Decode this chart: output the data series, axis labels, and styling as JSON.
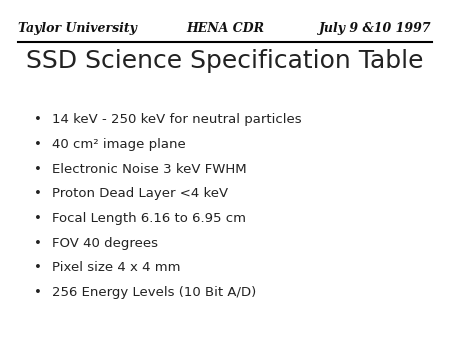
{
  "background_color": "#ffffff",
  "header_left": "Taylor University",
  "header_center": "HENA CDR",
  "header_right": "July 9 &10 1997",
  "header_fontsize": 9,
  "title": "SSD Science Specification Table",
  "title_fontsize": 18,
  "title_color": "#222222",
  "bullet_items": [
    "14 keV - 250 keV for neutral particles",
    "40 cm² image plane",
    "Electronic Noise 3 keV FWHM",
    "Proton Dead Layer <4 keV",
    "Focal Length 6.16 to 6.95 cm",
    "FOV 40 degrees",
    "Pixel size 4 x 4 mm",
    "256 Energy Levels (10 Bit A/D)"
  ],
  "bullet_fontsize": 9.5,
  "bullet_color": "#222222",
  "line_color": "#000000"
}
